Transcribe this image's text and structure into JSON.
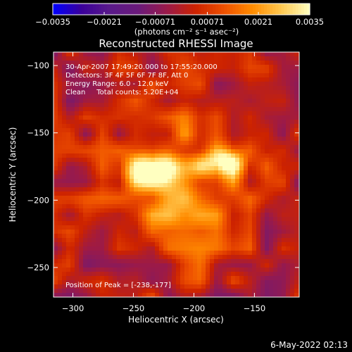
{
  "chart_data": {
    "type": "heatmap",
    "title": "Reconstructed RHESSI Image",
    "xlabel": "Heliocentric X (arcsec)",
    "ylabel": "Heliocentric Y (arcsec)",
    "xlim": [
      -316,
      -113
    ],
    "ylim": [
      -272,
      -90
    ],
    "xticks": [
      -300,
      -250,
      -200,
      -150
    ],
    "xtick_labels": [
      "−300",
      "−250",
      "−200",
      "−150"
    ],
    "yticks": [
      -100,
      -150,
      -200,
      -250
    ],
    "ytick_labels": [
      "−100",
      "−150",
      "−200",
      "−250"
    ],
    "colorbar": {
      "min": -0.0035,
      "max": 0.0035,
      "ticks": [
        -0.0035,
        -0.0021,
        -0.00071,
        0.00071,
        0.0021,
        0.0035
      ],
      "tick_labels": [
        "−0.0035",
        "−0.0021",
        "−0.00071",
        "0.00071",
        "0.0021",
        "0.0035"
      ],
      "unit_label": "(photons cm⁻² s⁻¹ asec⁻²)",
      "colormap": [
        "#0000ff",
        "#3a009a",
        "#5a1a8a",
        "#6a1a7a",
        "#9a1a4a",
        "#cc2200",
        "#ee5000",
        "#ff8c00",
        "#ffc850",
        "#ffffc0"
      ]
    },
    "info_lines": [
      "30-Apr-2007 17:49:20.000 to 17:55:20.000",
      "Detectors: 3F 4F 5F 6F 7F 8F, Att 0",
      "Energy Range: 6.0 - 12.0 keV",
      "Clean     Total counts: 5.20E+04"
    ],
    "peak_label": "Position of Peak = [-238,-177]",
    "peak": [
      -238,
      -177
    ],
    "sources": [
      {
        "x": -238,
        "y": -177,
        "peak": 0.0035,
        "sigma": 14
      },
      {
        "x": -175,
        "y": -172,
        "peak": 0.0031,
        "sigma": 12
      }
    ]
  },
  "footer": {
    "date": "6-May-2022 02:13"
  }
}
